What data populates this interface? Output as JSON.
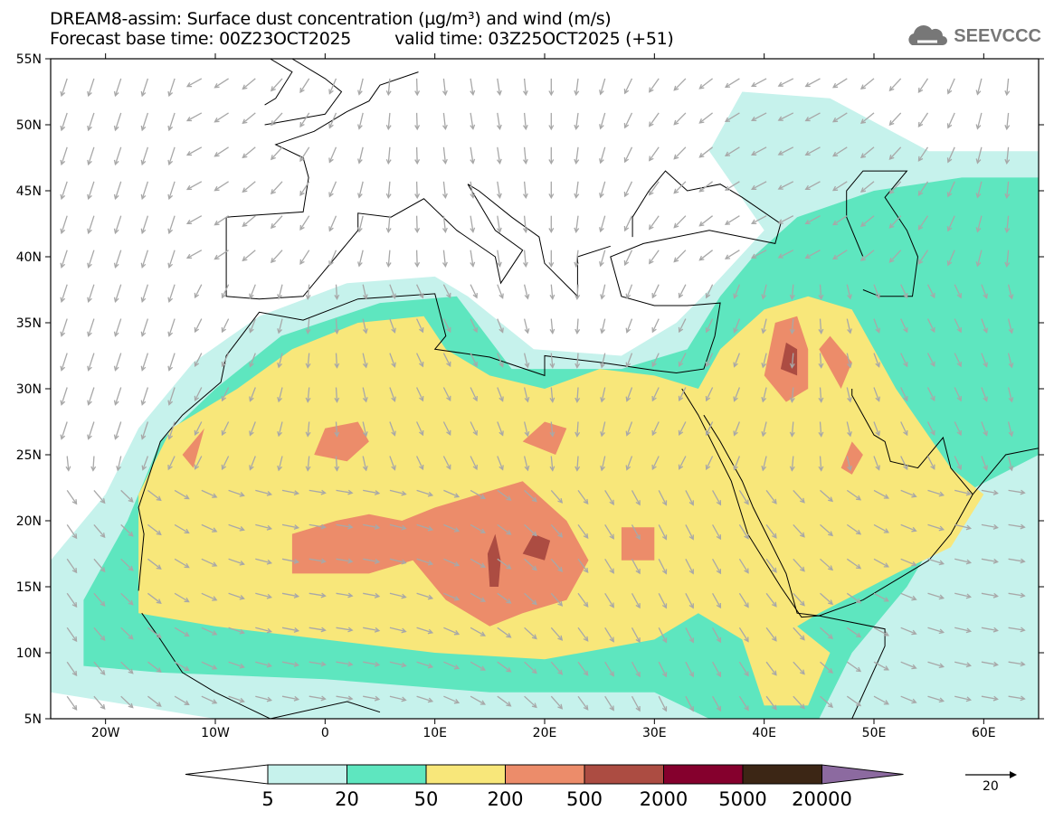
{
  "header": {
    "title": "DREAM8-assim: Surface dust concentration (µg/m³) and wind (m/s)",
    "base_time": "Forecast base time: 00Z23OCT2025",
    "valid_time": "valid time: 03Z25OCT2025 (+51)"
  },
  "logo": {
    "text": "SEEVCCC",
    "icon": "cloud-icon"
  },
  "map": {
    "lat_labels": [
      "55N",
      "50N",
      "45N",
      "40N",
      "35N",
      "30N",
      "25N",
      "20N",
      "15N",
      "10N",
      "5N"
    ],
    "lon_labels": [
      "20W",
      "10W",
      "0",
      "10E",
      "20E",
      "30E",
      "40E",
      "50E",
      "60E"
    ]
  },
  "colorbar": {
    "labels": [
      "5",
      "20",
      "50",
      "200",
      "500",
      "2000",
      "5000",
      "20000"
    ],
    "colors": [
      "#c6f2ec",
      "#5ee6bf",
      "#f8e77a",
      "#ec8c6a",
      "#ac4c42",
      "#85002d",
      "#3c2615",
      "#8c6aa0"
    ]
  },
  "wind_legend": {
    "label": "20"
  }
}
